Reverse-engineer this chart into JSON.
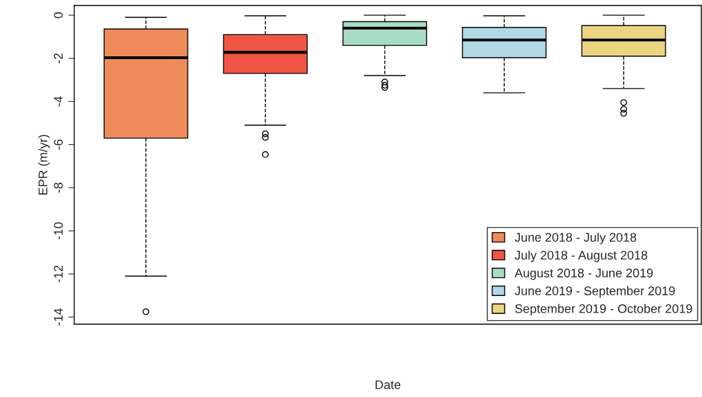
{
  "chart_data": {
    "type": "box",
    "xlabel": "Date",
    "ylabel": "EPR (m/yr)",
    "categories": [
      null,
      null,
      null,
      null,
      null
    ],
    "ylim": [
      -14.33,
      0.45
    ],
    "yticks": [
      0,
      -2,
      -4,
      -6,
      -8,
      -10,
      -12,
      -14
    ],
    "grid": false,
    "legend": "bottom right",
    "line_style": "dashed",
    "marker": "circle",
    "series": [
      {
        "name": "June 2018 - July 2018",
        "color": "#ef8a5a",
        "boxes": [
          {
            "low": -12.1,
            "q1": -5.7,
            "median": -1.97,
            "q3": -0.64,
            "high": -0.1,
            "outliers": [
              -13.75
            ]
          },
          null,
          null,
          null,
          null
        ]
      },
      {
        "name": "July 2018 - August 2018",
        "color": "#f05545",
        "boxes": [
          null,
          {
            "low": -5.1,
            "q1": -2.7,
            "median": -1.72,
            "q3": -0.9,
            "high": -0.03,
            "outliers": [
              -5.5,
              -5.67,
              -6.46
            ]
          },
          null,
          null,
          null
        ]
      },
      {
        "name": "August 2018 - June 2019",
        "color": "#a8dcc4",
        "boxes": [
          null,
          null,
          {
            "low": -2.8,
            "q1": -1.4,
            "median": -0.6,
            "q3": -0.3,
            "high": 0,
            "outliers": [
              -3.1,
              -3.25,
              -3.35
            ]
          },
          null,
          null
        ]
      },
      {
        "name": "June 2019 - September 2019",
        "color": "#b0d8e6",
        "boxes": [
          null,
          null,
          null,
          {
            "low": -3.6,
            "q1": -1.97,
            "median": -1.15,
            "q3": -0.57,
            "high": -0.03
          },
          null
        ]
      },
      {
        "name": "September 2019 - October 2019",
        "color": "#ecd580",
        "boxes": [
          null,
          null,
          null,
          null,
          {
            "low": -3.4,
            "q1": -1.9,
            "median": -1.15,
            "q3": -0.48,
            "high": 0,
            "outliers": [
              -4.05,
              -4.36,
              -4.55
            ]
          }
        ]
      }
    ]
  }
}
